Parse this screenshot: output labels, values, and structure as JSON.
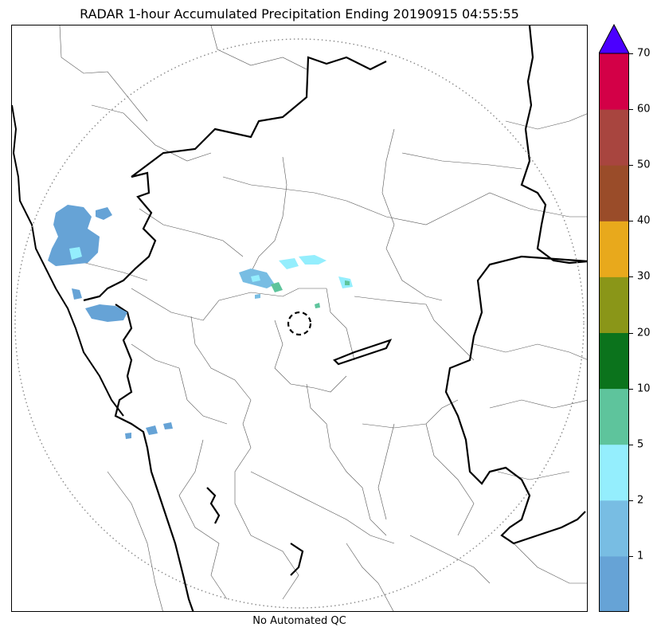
{
  "title": "RADAR 1-hour Accumulated Precipitation Ending 20190915 04:55:55",
  "footer": "No Automated QC",
  "colorbar": {
    "extend": "max",
    "extend_color": "#4b00ff",
    "bins": [
      {
        "from": 0,
        "to": 1,
        "color": "#66a3d6"
      },
      {
        "from": 1,
        "to": 2,
        "color": "#78bde3"
      },
      {
        "from": 2,
        "to": 5,
        "color": "#94eefd"
      },
      {
        "from": 5,
        "to": 10,
        "color": "#5ec49c"
      },
      {
        "from": 10,
        "to": 20,
        "color": "#0b731c"
      },
      {
        "from": 20,
        "to": 30,
        "color": "#8a9618"
      },
      {
        "from": 30,
        "to": 40,
        "color": "#e8a91c"
      },
      {
        "from": 40,
        "to": 50,
        "color": "#9a4c29"
      },
      {
        "from": 50,
        "to": 60,
        "color": "#a8453f"
      },
      {
        "from": 60,
        "to": 70,
        "color": "#d30047"
      }
    ],
    "tick_labels": [
      "1",
      "2",
      "5",
      "10",
      "20",
      "30",
      "40",
      "50",
      "60",
      "70"
    ]
  },
  "map": {
    "radar_range_ring": "dotted",
    "radar_center_marker": "dashed-circle",
    "layers": [
      "state-borders",
      "district-borders",
      "coastline",
      "precipitation-echoes"
    ]
  }
}
